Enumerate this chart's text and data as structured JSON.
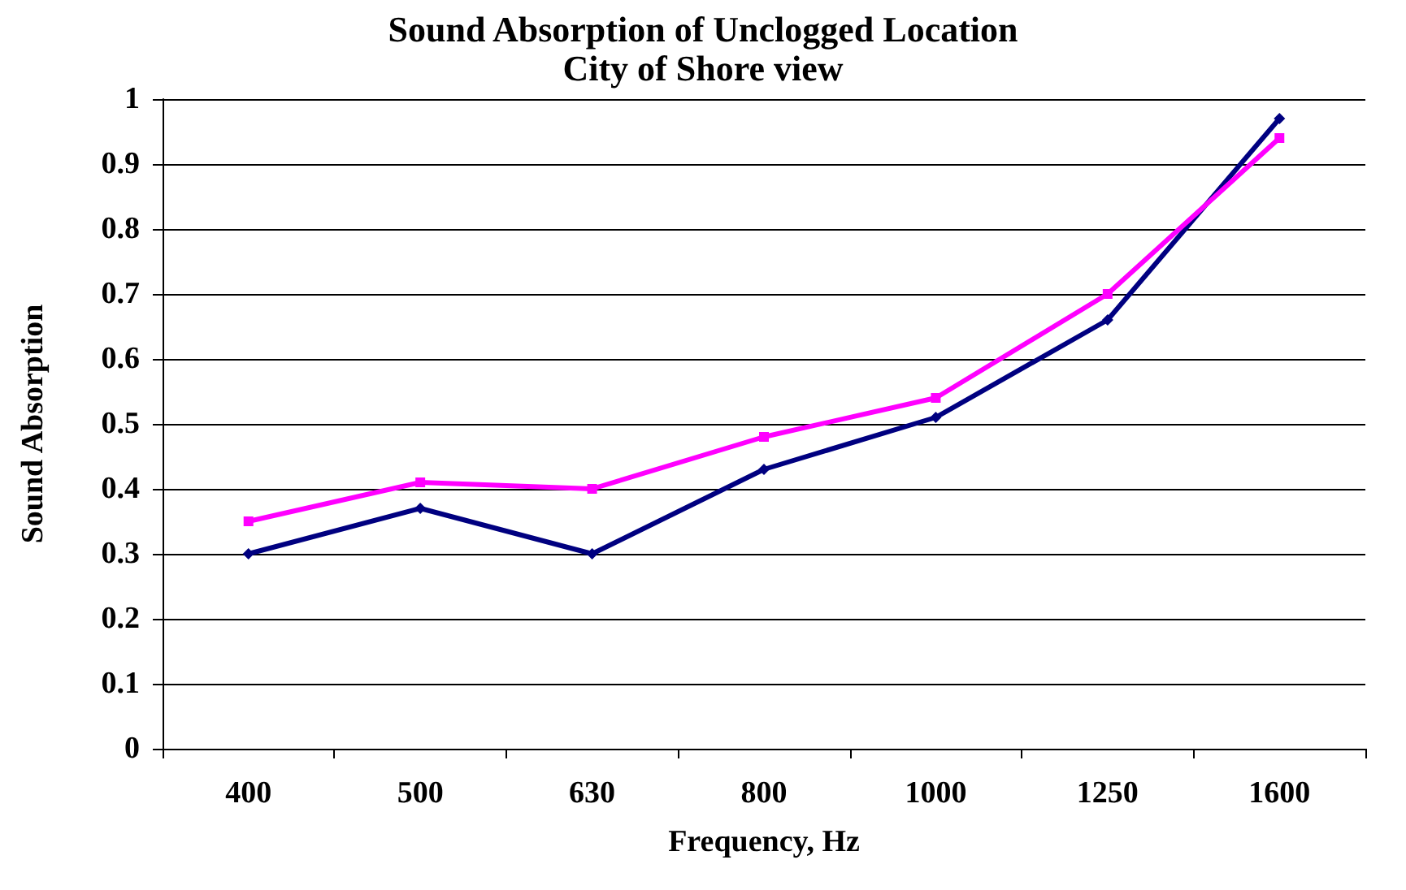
{
  "chart_data": {
    "type": "line",
    "title": "Sound Absorption of Unclogged Location",
    "subtitle": "City of Shore view",
    "xlabel": "Frequency, Hz",
    "ylabel": "Sound Absorption",
    "categories": [
      "400",
      "500",
      "630",
      "800",
      "1000",
      "1250",
      "1600"
    ],
    "series": [
      {
        "color": "#000080",
        "marker": "diamond",
        "values": [
          0.3,
          0.37,
          0.3,
          0.43,
          0.51,
          0.66,
          0.97
        ]
      },
      {
        "color": "#ff00ff",
        "marker": "square",
        "values": [
          0.35,
          0.41,
          0.4,
          0.48,
          0.54,
          0.7,
          0.94
        ]
      }
    ],
    "ylim": [
      0,
      1
    ],
    "yticks": [
      0,
      0.1,
      0.2,
      0.3,
      0.4,
      0.5,
      0.6,
      0.7,
      0.8,
      0.9,
      1
    ],
    "grid": "y",
    "line_style": "solid"
  }
}
